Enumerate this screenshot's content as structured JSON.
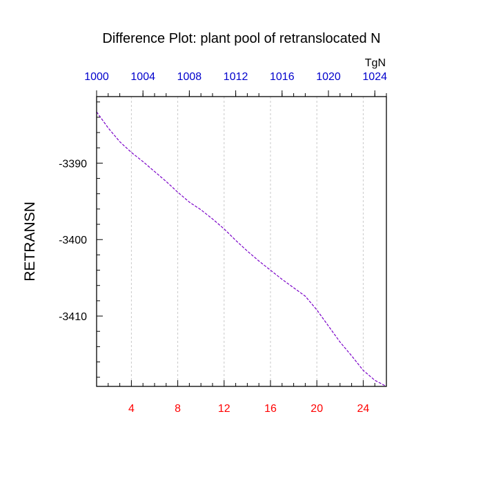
{
  "chart_data": {
    "type": "line",
    "title": "Difference Plot: plant pool of retranslocated N",
    "ylabel": "RETRANSN",
    "xlabel": "",
    "top_axis_unit": "TgN",
    "xlim": [
      1,
      26
    ],
    "ylim": [
      -3419.2,
      -3381.3
    ],
    "grid": {
      "x_dashed": true,
      "y": false
    },
    "colors": {
      "line": "#7a00c8",
      "bottom_ticks": "#ff0000",
      "top_ticks": "#0000cc",
      "left_ticks": "#000000"
    },
    "x_ticks": [
      {
        "value": 4,
        "label": "4"
      },
      {
        "value": 8,
        "label": "8"
      },
      {
        "value": 12,
        "label": "12"
      },
      {
        "value": 16,
        "label": "16"
      },
      {
        "value": 20,
        "label": "20"
      },
      {
        "value": 24,
        "label": "24"
      }
    ],
    "x_minor_ticks": [
      1,
      2,
      3,
      5,
      6,
      7,
      9,
      10,
      11,
      13,
      14,
      15,
      17,
      18,
      19,
      21,
      22,
      23,
      25,
      26
    ],
    "top_ticks": [
      {
        "value": 1,
        "label": "1000"
      },
      {
        "value": 5,
        "label": "1004"
      },
      {
        "value": 9,
        "label": "1008"
      },
      {
        "value": 13,
        "label": "1012"
      },
      {
        "value": 17,
        "label": "1016"
      },
      {
        "value": 21,
        "label": "1020"
      },
      {
        "value": 25,
        "label": "1024"
      }
    ],
    "y_ticks": [
      {
        "value": -3390,
        "label": "-3390"
      },
      {
        "value": -3400,
        "label": "-3400"
      },
      {
        "value": -3410,
        "label": "-3410"
      }
    ],
    "y_minor_ticks": [
      -3382,
      -3384,
      -3386,
      -3388,
      -3392,
      -3394,
      -3396,
      -3398,
      -3402,
      -3404,
      -3406,
      -3408,
      -3412,
      -3414,
      -3416,
      -3418
    ],
    "series": [
      {
        "x": [
          1,
          2,
          3,
          4,
          5,
          6,
          7,
          8,
          9,
          10,
          11,
          12,
          13,
          14,
          15,
          16,
          17,
          18,
          19,
          20,
          21,
          22,
          23,
          24,
          25,
          26
        ],
        "values": [
          -3383.3,
          -3385.4,
          -3387.2,
          -3388.6,
          -3389.8,
          -3391.1,
          -3392.4,
          -3393.8,
          -3395.1,
          -3396.1,
          -3397.3,
          -3398.6,
          -3400.1,
          -3401.5,
          -3402.8,
          -3404.0,
          -3405.2,
          -3406.3,
          -3407.4,
          -3409.2,
          -3411.3,
          -3413.4,
          -3415.2,
          -3417.1,
          -3418.4,
          -3419.2
        ]
      }
    ]
  }
}
